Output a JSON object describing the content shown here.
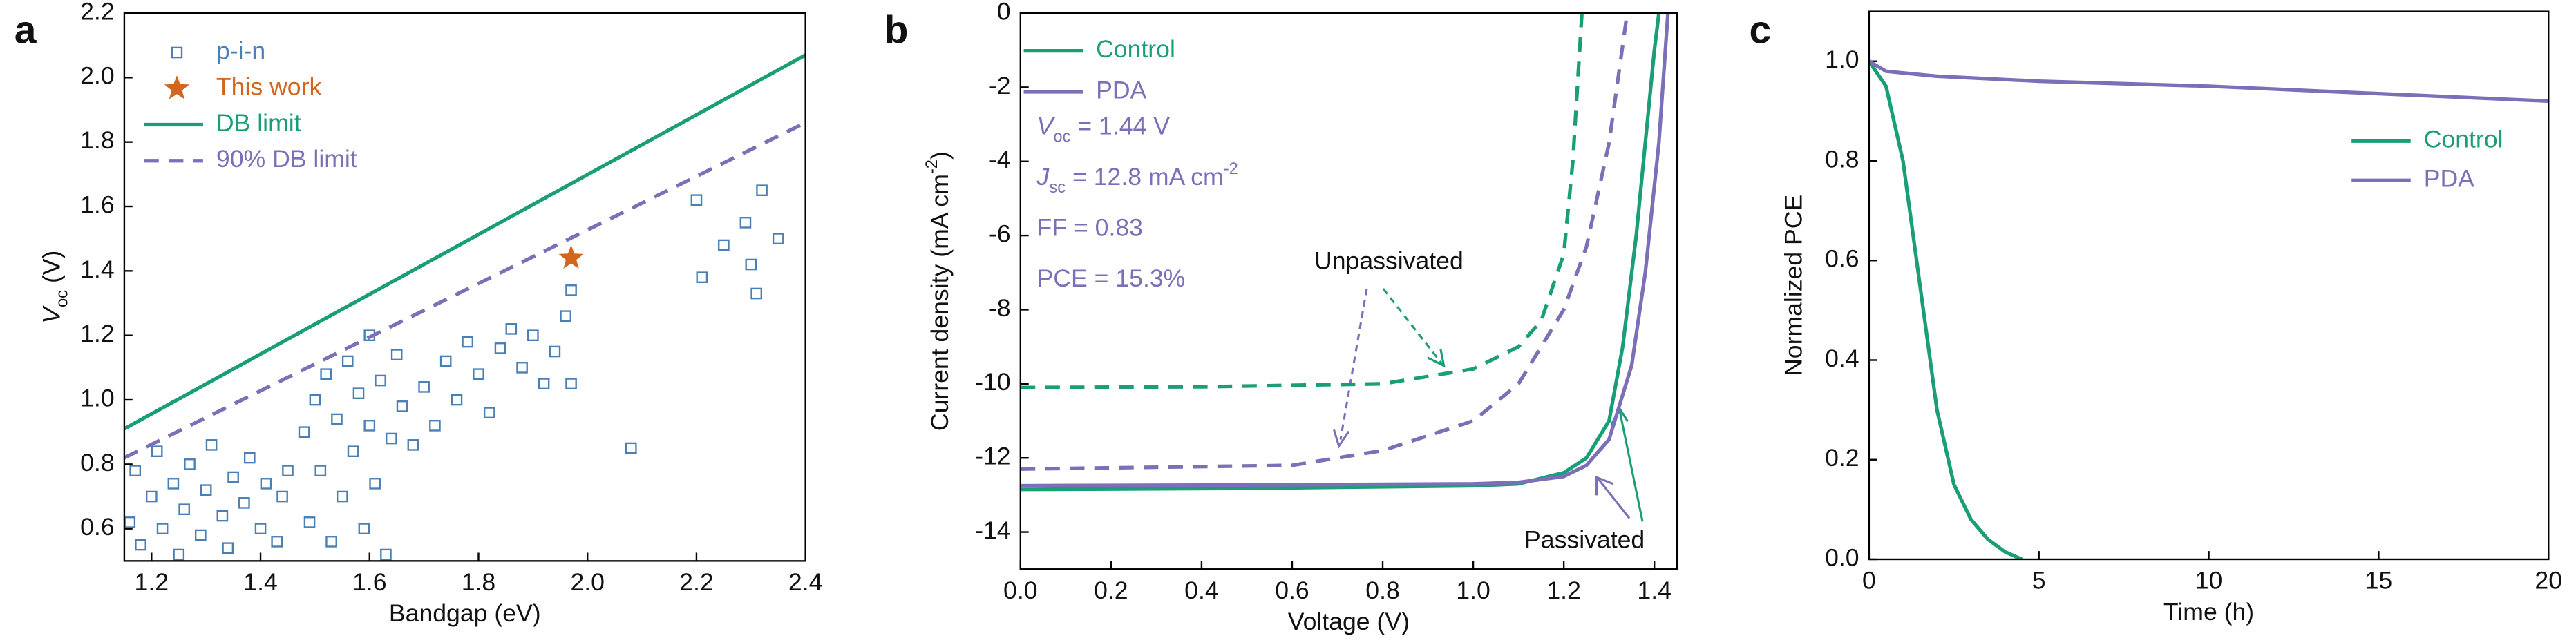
{
  "chart_data": [
    {
      "type": "scatter",
      "panel_label": "a",
      "xlabel": "Bandgap (eV)",
      "ylabel": {
        "symbol": "V",
        "sub": "oc",
        "text": " (V)"
      },
      "xlim": [
        1.15,
        2.4
      ],
      "ylim": [
        0.5,
        2.2
      ],
      "xticks": [
        1.2,
        1.4,
        1.6,
        1.8,
        {
          "value": 2,
          "label": "2.0"
        },
        2.2,
        2.4
      ],
      "yticks": [
        0.6,
        0.8,
        {
          "value": 1,
          "label": "1.0"
        },
        1.2,
        1.4,
        1.6,
        1.8,
        {
          "value": 2,
          "label": "2.0"
        },
        2.2
      ],
      "legend": "upper left",
      "series": [
        {
          "name": "p-i-n",
          "color": "#4a7fb5",
          "marker": "square",
          "x": [
            1.16,
            1.17,
            1.18,
            1.2,
            1.21,
            1.22,
            1.24,
            1.25,
            1.26,
            1.27,
            1.29,
            1.3,
            1.31,
            1.33,
            1.34,
            1.35,
            1.37,
            1.38,
            1.4,
            1.41,
            1.43,
            1.44,
            1.45,
            1.48,
            1.49,
            1.5,
            1.51,
            1.52,
            1.53,
            1.54,
            1.55,
            1.56,
            1.57,
            1.58,
            1.59,
            1.6,
            1.6,
            1.61,
            1.62,
            1.63,
            1.64,
            1.65,
            1.66,
            1.68,
            1.7,
            1.72,
            1.74,
            1.76,
            1.78,
            1.8,
            1.82,
            1.84,
            1.86,
            1.88,
            1.9,
            1.92,
            1.94,
            1.96,
            1.97,
            1.97,
            2.08,
            2.2,
            2.21,
            2.25,
            2.29,
            2.3,
            2.31,
            2.32,
            2.35
          ],
          "values": [
            0.62,
            0.78,
            0.55,
            0.7,
            0.84,
            0.6,
            0.74,
            0.52,
            0.66,
            0.8,
            0.58,
            0.72,
            0.86,
            0.64,
            0.54,
            0.76,
            0.68,
            0.82,
            0.6,
            0.74,
            0.56,
            0.7,
            0.78,
            0.9,
            0.62,
            1.0,
            0.78,
            1.08,
            0.56,
            0.94,
            0.7,
            1.12,
            0.84,
            1.02,
            0.6,
            0.92,
            1.2,
            0.74,
            1.06,
            0.52,
            0.88,
            1.14,
            0.98,
            0.86,
            1.04,
            0.92,
            1.12,
            1.0,
            1.18,
            1.08,
            0.96,
            1.16,
            1.22,
            1.1,
            1.2,
            1.05,
            1.15,
            1.26,
            1.05,
            1.34,
            0.85,
            1.62,
            1.38,
            1.48,
            1.55,
            1.42,
            1.33,
            1.65,
            1.5
          ]
        },
        {
          "name": "This work",
          "color": "#d4651c",
          "marker": "star",
          "x": [
            1.97
          ],
          "values": [
            1.44
          ]
        },
        {
          "name": "DB limit",
          "color": "#1a9e77",
          "line": "solid",
          "x": [
            1.15,
            2.4
          ],
          "values": [
            0.91,
            2.07
          ]
        },
        {
          "name": "90% DB limit",
          "color": "#7b6fb8",
          "line": "dashed",
          "x": [
            1.15,
            2.4
          ],
          "values": [
            0.82,
            1.86
          ]
        }
      ]
    },
    {
      "type": "line",
      "panel_label": "b",
      "xlabel": "Voltage (V)",
      "ylabel": {
        "text": "Current density (mA cm",
        "sup": "-2",
        "end": ")"
      },
      "xlim": [
        0,
        1.45
      ],
      "ylim": [
        -15,
        0
      ],
      "xticks": [
        {
          "value": 0,
          "label": "0.0"
        },
        0.2,
        0.4,
        0.6,
        0.8,
        {
          "value": 1,
          "label": "1.0"
        },
        1.2,
        1.4
      ],
      "yticks": [
        -14,
        -12,
        -10,
        -8,
        -6,
        -4,
        -2,
        0
      ],
      "legend": "upper left",
      "series": [
        {
          "name": "Control",
          "color": "#1a9e77",
          "line": "solid",
          "x": [
            0,
            0.5,
            1.0,
            1.1,
            1.2,
            1.25,
            1.3,
            1.33,
            1.36,
            1.38,
            1.4,
            1.41
          ],
          "values": [
            -12.85,
            -12.82,
            -12.75,
            -12.7,
            -12.4,
            -12.0,
            -11.0,
            -9.0,
            -6.0,
            -3.5,
            -1.0,
            0
          ]
        },
        {
          "name": "PDA",
          "color": "#7b6fb8",
          "line": "solid",
          "x": [
            0,
            0.5,
            1.0,
            1.1,
            1.2,
            1.25,
            1.3,
            1.35,
            1.38,
            1.41,
            1.43
          ],
          "values": [
            -12.75,
            -12.73,
            -12.7,
            -12.66,
            -12.5,
            -12.2,
            -11.5,
            -9.5,
            -7.0,
            -3.5,
            0
          ]
        },
        {
          "color": "#1a9e77",
          "line": "dashed",
          "x": [
            0,
            0.4,
            0.8,
            1.0,
            1.1,
            1.15,
            1.2,
            1.22,
            1.24
          ],
          "values": [
            -10.1,
            -10.08,
            -10.0,
            -9.6,
            -9.0,
            -8.3,
            -6.5,
            -4.0,
            0
          ]
        },
        {
          "color": "#7b6fb8",
          "line": "dashed",
          "x": [
            0,
            0.6,
            0.8,
            1.0,
            1.1,
            1.2,
            1.25,
            1.3,
            1.34
          ],
          "values": [
            -12.3,
            -12.2,
            -11.8,
            -11.0,
            -10.0,
            -8.0,
            -6.3,
            -3.5,
            0
          ]
        }
      ],
      "parameters": [
        {
          "symbol": "V",
          "sub": "oc",
          "text": " = 1.44 V"
        },
        {
          "symbol": "J",
          "sub": "sc",
          "text": " = 12.8 mA cm",
          "sup": "-2"
        },
        {
          "text": "FF = 0.83"
        },
        {
          "text": "PCE = 15.3%"
        }
      ],
      "annotations": [
        "Unpassivated",
        "Passivated"
      ]
    },
    {
      "type": "line",
      "panel_label": "c",
      "xlabel": "Time (h)",
      "ylabel": "Normalized PCE",
      "xlim": [
        0,
        20
      ],
      "ylim": [
        0,
        1.1
      ],
      "xticks": [
        0,
        5,
        10,
        15,
        20
      ],
      "yticks": [
        {
          "value": 0,
          "label": "0.0"
        },
        0.2,
        0.4,
        0.6,
        0.8,
        {
          "value": 1,
          "label": "1.0"
        }
      ],
      "legend": "center right",
      "series": [
        {
          "name": "Control",
          "color": "#1a9e77",
          "line": "solid",
          "x": [
            0,
            0.5,
            1,
            1.5,
            2,
            2.5,
            3,
            3.5,
            4,
            4.5
          ],
          "values": [
            1.0,
            0.95,
            0.8,
            0.55,
            0.3,
            0.15,
            0.08,
            0.04,
            0.015,
            0
          ]
        },
        {
          "name": "PDA",
          "color": "#7b6fb8",
          "line": "solid",
          "x": [
            0,
            0.5,
            2,
            5,
            10,
            15,
            20
          ],
          "values": [
            1.0,
            0.98,
            0.97,
            0.96,
            0.95,
            0.935,
            0.92
          ]
        }
      ]
    }
  ]
}
